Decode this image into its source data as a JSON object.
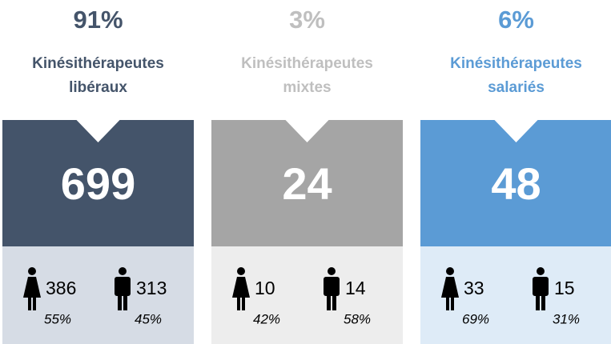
{
  "columns": [
    {
      "percent": "91%",
      "label_lines": [
        "Kinésithérapeutes",
        "libéraux"
      ],
      "total": "699",
      "female": {
        "count": "386",
        "percent": "55%"
      },
      "male": {
        "count": "313",
        "percent": "45%"
      },
      "color": "#44546a",
      "light": "#d6dce5",
      "text_color": "#44546a"
    },
    {
      "percent": "3%",
      "label_lines": [
        "Kinésithérapeutes",
        "mixtes"
      ],
      "total": "24",
      "female": {
        "count": "10",
        "percent": "42%"
      },
      "male": {
        "count": "14",
        "percent": "58%"
      },
      "color": "#a5a5a5",
      "light": "#ededed",
      "text_color": "#bfbfbf"
    },
    {
      "percent": "6%",
      "label_lines": [
        "Kinésithérapeutes",
        "salariés"
      ],
      "total": "48",
      "female": {
        "count": "33",
        "percent": "69%"
      },
      "male": {
        "count": "15",
        "percent": "31%"
      },
      "color": "#5b9bd5",
      "light": "#deebf7",
      "text_color": "#5b9bd5"
    }
  ]
}
